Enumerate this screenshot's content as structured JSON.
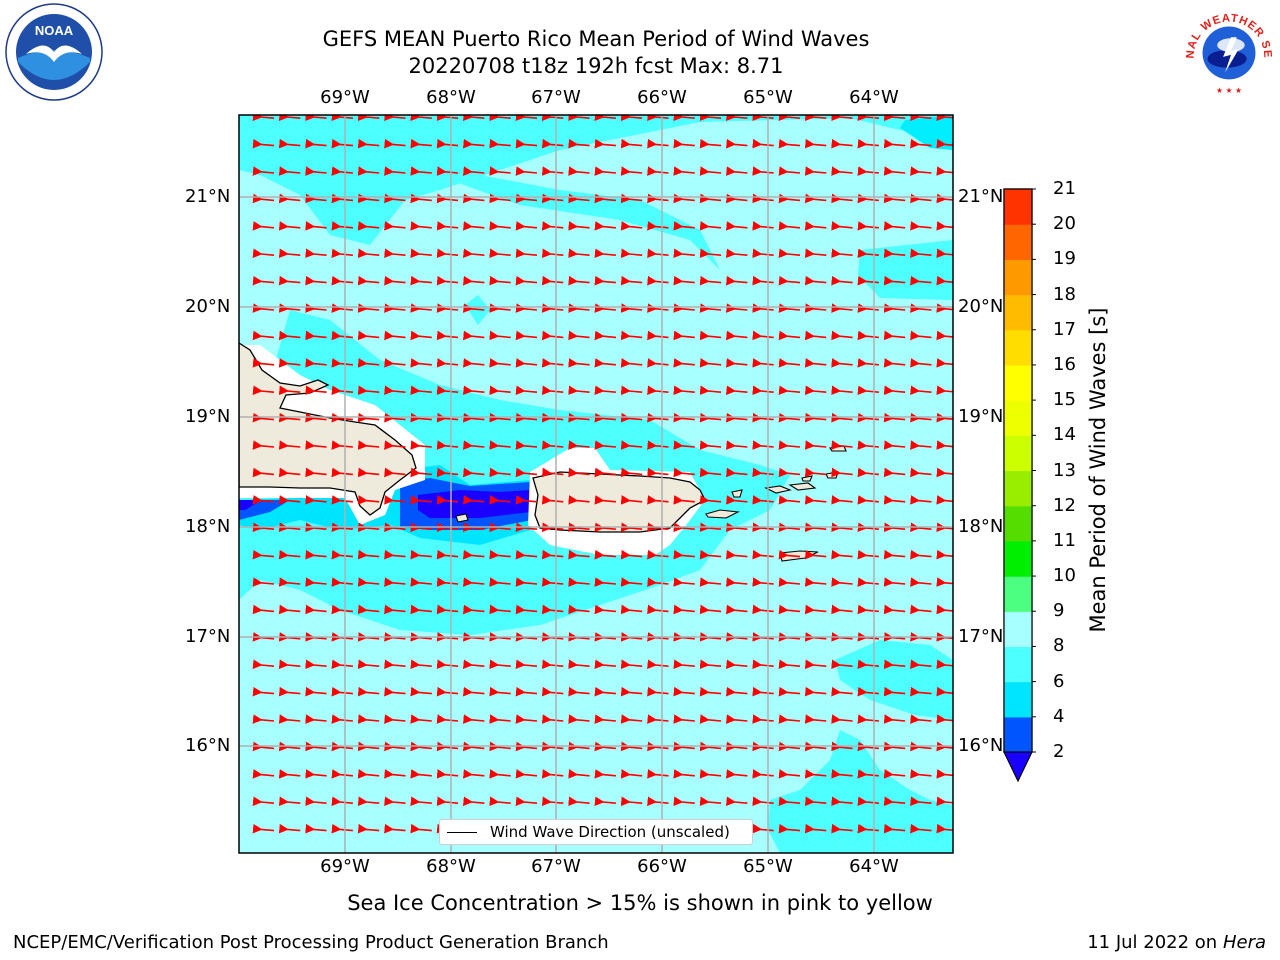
{
  "title": {
    "line1": "GEFS MEAN Puerto Rico Mean Period of Wind Waves",
    "line2": "20220708 t18z 192h fcst   Max: 8.71"
  },
  "map": {
    "longitude_labels": [
      "69°W",
      "68°W",
      "67°W",
      "66°W",
      "65°W",
      "64°W"
    ],
    "latitude_labels": [
      "21°N",
      "20°N",
      "19°N",
      "18°N",
      "17°N",
      "16°N"
    ],
    "arrow_color": "#ff0000",
    "land_color": "#efebdc",
    "legend_label": "Wind Wave Direction (unscaled)"
  },
  "colorbar": {
    "label": "Mean Period of Wind Waves [s]",
    "ticks": [
      "2",
      "4",
      "6",
      "8",
      "9",
      "10",
      "11",
      "12",
      "13",
      "14",
      "15",
      "16",
      "17",
      "18",
      "19",
      "20",
      "21"
    ],
    "colors": [
      "#0055ff",
      "#00e5ff",
      "#4dffff",
      "#a8ffff",
      "#4dff80",
      "#00ee00",
      "#55dd00",
      "#99ee00",
      "#ccff00",
      "#eeff00",
      "#ffff00",
      "#ffdd00",
      "#ffbb00",
      "#ff9900",
      "#ff6600",
      "#ff3300"
    ],
    "extend_color": "#1a00ff"
  },
  "caption": "Sea Ice Concentration > 15% is shown in pink to yellow",
  "footer": {
    "left": "NCEP/EMC/Verification Post Processing Product Generation Branch",
    "date": "11 Jul 2022 on ",
    "machine": "Hera"
  },
  "logos": {
    "left": "NOAA",
    "right_text": "NATIONAL WEATHER SERVICE"
  }
}
